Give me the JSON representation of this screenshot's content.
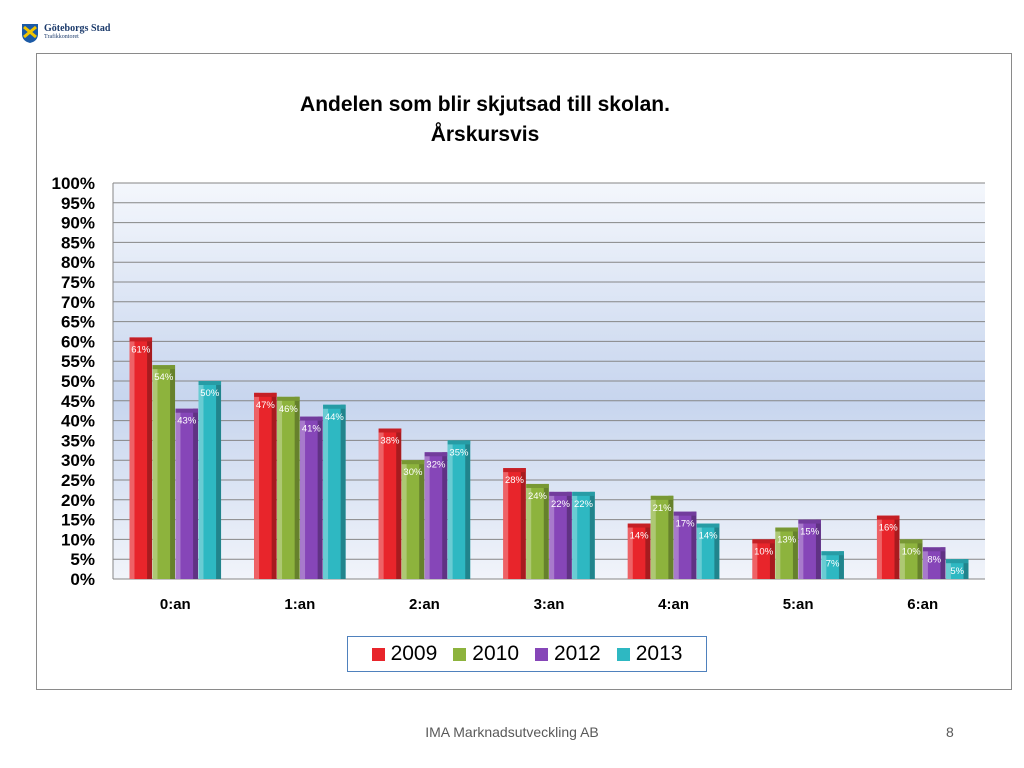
{
  "header": {
    "logo_title": "Göteborgs Stad",
    "logo_subtitle": "Trafikkontoret"
  },
  "footer": {
    "company": "IMA Marknadsutveckling AB",
    "page_number": "8"
  },
  "chart_data": {
    "type": "bar",
    "title_line1": "Andelen som blir skjutsad till skolan.",
    "title_line2": "Årskursvis",
    "categories": [
      "0:an",
      "1:an",
      "2:an",
      "3:an",
      "4:an",
      "5:an",
      "6:an"
    ],
    "series": [
      {
        "name": "2009",
        "color": "#e8252b",
        "values": [
          61,
          47,
          38,
          28,
          14,
          10,
          16
        ],
        "labels": [
          "61%",
          "47%",
          "38%",
          "28%",
          "14%",
          "10%",
          "16%"
        ]
      },
      {
        "name": "2010",
        "color": "#8db33d",
        "values": [
          54,
          46,
          30,
          24,
          21,
          13,
          10
        ],
        "labels": [
          "54%",
          "46%",
          "30%",
          "24%",
          "21%",
          "13%",
          "10%"
        ]
      },
      {
        "name": "2012",
        "color": "#8646b8",
        "values": [
          43,
          41,
          32,
          22,
          17,
          15,
          8
        ],
        "labels": [
          "43%",
          "41%",
          "32%",
          "22%",
          "17%",
          "15%",
          "8%"
        ]
      },
      {
        "name": "2013",
        "color": "#2eb8c2",
        "values": [
          50,
          44,
          35,
          22,
          14,
          7,
          5
        ],
        "labels": [
          "50%",
          "44%",
          "35%",
          "22%",
          "14%",
          "7%",
          "5%"
        ]
      }
    ],
    "yticks": [
      "0%",
      "5%",
      "10%",
      "15%",
      "20%",
      "25%",
      "30%",
      "35%",
      "40%",
      "45%",
      "50%",
      "55%",
      "60%",
      "65%",
      "70%",
      "75%",
      "80%",
      "85%",
      "90%",
      "95%",
      "100%"
    ],
    "ylim": [
      0,
      100
    ],
    "grid": true,
    "legend_position": "bottom"
  }
}
